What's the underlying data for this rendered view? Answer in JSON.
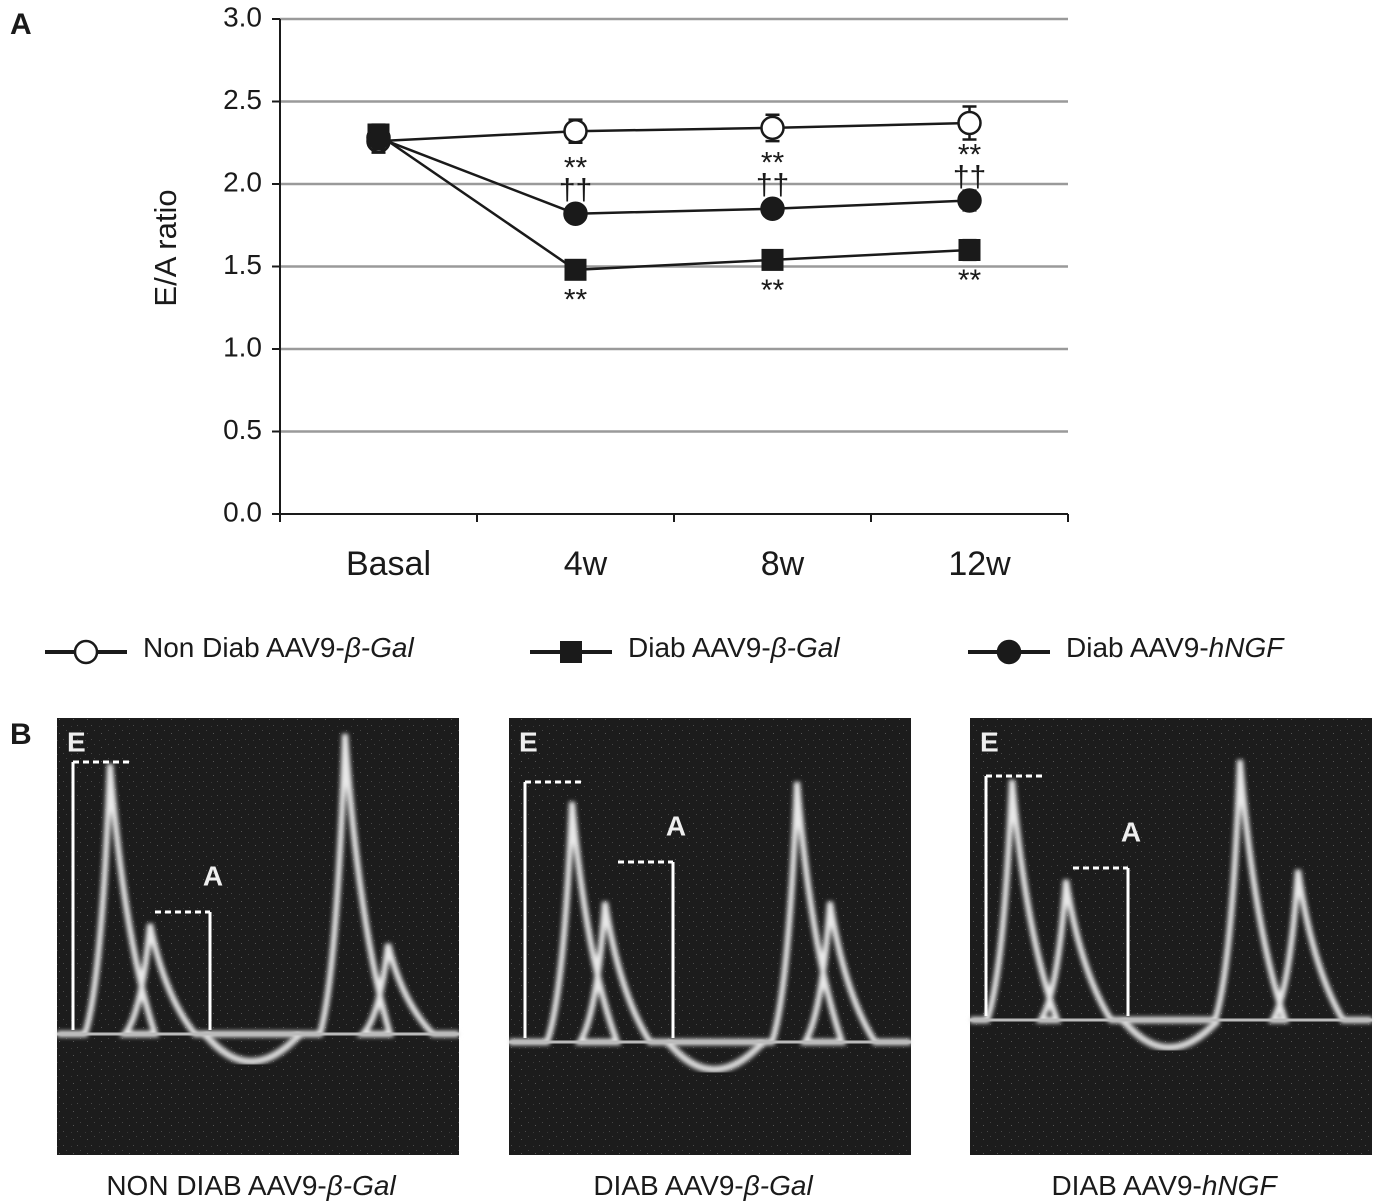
{
  "panel_labels": [
    "A",
    "B"
  ],
  "chart_data": {
    "type": "line",
    "ylabel": "E/A ratio",
    "categories": [
      "Basal",
      "4w",
      "8w",
      "12w"
    ],
    "ylim": [
      0,
      3
    ],
    "yticks": [
      {
        "value": 0,
        "label": "0.0"
      },
      0.5,
      {
        "value": 1,
        "label": "1.0"
      },
      1.5,
      {
        "value": 2,
        "label": "2.0"
      },
      2.5,
      {
        "value": 3,
        "label": "3.0"
      }
    ],
    "grid": true,
    "series": [
      {
        "name": "Non Diab AAV9-β-Gal",
        "color": "#1a1a1a",
        "marker": "open-circle",
        "values": [
          2.26,
          2.32,
          2.34,
          2.37
        ],
        "errors": [
          0.07,
          0.07,
          0.08,
          0.1
        ]
      },
      {
        "name": "Diab AAV9-β-Gal",
        "color": "#1a1a1a",
        "marker": "square",
        "values": [
          2.3,
          1.48,
          1.54,
          1.6
        ],
        "errors": [
          0.06,
          0.04,
          0.04,
          0.06
        ],
        "annotation_position": "below",
        "annotations": [
          null,
          [
            "**"
          ],
          [
            "**"
          ],
          [
            "**"
          ]
        ]
      },
      {
        "name": "Diab AAV9-hNGF",
        "color": "#1a1a1a",
        "marker": "filled-circle",
        "values": [
          2.28,
          1.82,
          1.85,
          1.9
        ],
        "errors": [
          0.07,
          0.05,
          0.05,
          0.06
        ],
        "annotation_position": "above",
        "annotations": [
          null,
          [
            "**",
            "††"
          ],
          [
            "**",
            "††"
          ],
          [
            "**",
            "††"
          ]
        ]
      }
    ]
  },
  "doppler": {
    "panels": [
      {
        "caption": "NON DIAB AAV9-β-Gal",
        "labels": [
          "E",
          "A"
        ]
      },
      {
        "caption": "DIAB AAV9-β-Gal",
        "labels": [
          "E",
          "A"
        ]
      },
      {
        "caption": "DIAB AAV9-hNGF",
        "labels": [
          "E",
          "A"
        ]
      }
    ]
  }
}
